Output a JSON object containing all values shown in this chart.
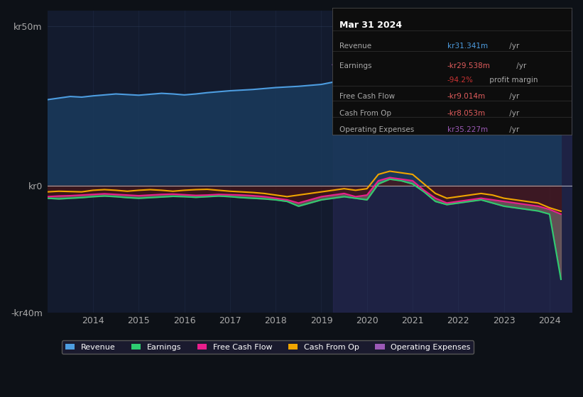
{
  "bg_color": "#0d1117",
  "plot_bg_color": "#131b2e",
  "title": "Mar 31 2024",
  "tooltip": {
    "title": "Mar 31 2024",
    "rows": [
      {
        "label": "Revenue",
        "value": "kr31.341m /yr",
        "value_color": "#4d9de0"
      },
      {
        "label": "Earnings",
        "value": "-kr29.538m /yr",
        "value_color": "#e05c5c"
      },
      {
        "label": "",
        "value": "-94.2% profit margin",
        "value_color": "#cc3333"
      },
      {
        "label": "Free Cash Flow",
        "value": "-kr9.014m /yr",
        "value_color": "#e05c5c"
      },
      {
        "label": "Cash From Op",
        "value": "-kr8.053m /yr",
        "value_color": "#e05c5c"
      },
      {
        "label": "Operating Expenses",
        "value": "kr35.227m /yr",
        "value_color": "#9b59b6"
      }
    ]
  },
  "ylim": [
    -40,
    55
  ],
  "yticks": [
    -40,
    0,
    50
  ],
  "ytick_labels": [
    "-kr40m",
    "kr0",
    "kr50m"
  ],
  "xlim_start": 2013.0,
  "xlim_end": 2024.5,
  "xtick_years": [
    2014,
    2015,
    2016,
    2017,
    2018,
    2019,
    2020,
    2021,
    2022,
    2023,
    2024
  ],
  "highlight_start": 2019.25,
  "highlight_end": 2024.5,
  "legend": [
    {
      "label": "Revenue",
      "color": "#4d9de0"
    },
    {
      "label": "Earnings",
      "color": "#2ecc71"
    },
    {
      "label": "Free Cash Flow",
      "color": "#e91e8c"
    },
    {
      "label": "Cash From Op",
      "color": "#f0a500"
    },
    {
      "label": "Operating Expenses",
      "color": "#9b59b6"
    }
  ],
  "revenue": {
    "x": [
      2013.0,
      2013.25,
      2013.5,
      2013.75,
      2014.0,
      2014.25,
      2014.5,
      2014.75,
      2015.0,
      2015.25,
      2015.5,
      2015.75,
      2016.0,
      2016.25,
      2016.5,
      2016.75,
      2017.0,
      2017.25,
      2017.5,
      2017.75,
      2018.0,
      2018.25,
      2018.5,
      2018.75,
      2019.0,
      2019.25,
      2019.5,
      2019.75,
      2020.0,
      2020.25,
      2020.5,
      2020.75,
      2021.0,
      2021.25,
      2021.5,
      2021.75,
      2022.0,
      2022.25,
      2022.5,
      2022.75,
      2023.0,
      2023.25,
      2023.5,
      2023.75,
      2024.0,
      2024.25
    ],
    "y": [
      27,
      27.5,
      28,
      27.8,
      28.2,
      28.5,
      28.8,
      28.6,
      28.4,
      28.7,
      29.0,
      28.8,
      28.5,
      28.8,
      29.2,
      29.5,
      29.8,
      30.0,
      30.2,
      30.5,
      30.8,
      31.0,
      31.2,
      31.5,
      31.8,
      32.5,
      33.5,
      34.5,
      35.5,
      36.0,
      34.0,
      32.0,
      30.0,
      28.5,
      29.0,
      30.5,
      31.0,
      31.5,
      32.0,
      31.5,
      31.0,
      31.5,
      32.0,
      32.5,
      33.0,
      31.3
    ],
    "color": "#4d9de0",
    "fill_color": "#1a3a5c",
    "linewidth": 1.5
  },
  "earnings": {
    "x": [
      2013.0,
      2013.25,
      2013.5,
      2013.75,
      2014.0,
      2014.25,
      2014.5,
      2014.75,
      2015.0,
      2015.25,
      2015.5,
      2015.75,
      2016.0,
      2016.25,
      2016.5,
      2016.75,
      2017.0,
      2017.25,
      2017.5,
      2017.75,
      2018.0,
      2018.25,
      2018.5,
      2018.75,
      2019.0,
      2019.25,
      2019.5,
      2019.75,
      2020.0,
      2020.25,
      2020.5,
      2020.75,
      2021.0,
      2021.25,
      2021.5,
      2021.75,
      2022.0,
      2022.25,
      2022.5,
      2022.75,
      2023.0,
      2023.25,
      2023.5,
      2023.75,
      2024.0,
      2024.25
    ],
    "y": [
      -4,
      -4.2,
      -4.0,
      -3.8,
      -3.5,
      -3.3,
      -3.5,
      -3.8,
      -4.0,
      -3.8,
      -3.6,
      -3.4,
      -3.5,
      -3.7,
      -3.5,
      -3.3,
      -3.5,
      -3.8,
      -4.0,
      -4.2,
      -4.5,
      -5.0,
      -6.5,
      -5.5,
      -4.5,
      -4.0,
      -3.5,
      -4.0,
      -4.5,
      0.5,
      2.0,
      1.5,
      0.5,
      -2.0,
      -5.0,
      -6.0,
      -5.5,
      -5.0,
      -4.5,
      -5.5,
      -6.5,
      -7.0,
      -7.5,
      -8.0,
      -9.0,
      -29.5
    ],
    "color": "#2ecc71",
    "fill_color": "#1a4030",
    "linewidth": 1.5
  },
  "free_cash_flow": {
    "x": [
      2013.0,
      2013.25,
      2013.5,
      2013.75,
      2014.0,
      2014.25,
      2014.5,
      2014.75,
      2015.0,
      2015.25,
      2015.5,
      2015.75,
      2016.0,
      2016.25,
      2016.5,
      2016.75,
      2017.0,
      2017.25,
      2017.5,
      2017.75,
      2018.0,
      2018.25,
      2018.5,
      2018.75,
      2019.0,
      2019.25,
      2019.5,
      2019.75,
      2020.0,
      2020.25,
      2020.5,
      2020.75,
      2021.0,
      2021.25,
      2021.5,
      2021.75,
      2022.0,
      2022.25,
      2022.5,
      2022.75,
      2023.0,
      2023.25,
      2023.5,
      2023.75,
      2024.0,
      2024.25
    ],
    "y": [
      -3.5,
      -3.3,
      -3.2,
      -3.0,
      -2.8,
      -2.6,
      -2.8,
      -3.0,
      -3.2,
      -3.0,
      -2.8,
      -2.7,
      -2.9,
      -3.1,
      -3.0,
      -2.8,
      -2.9,
      -3.0,
      -3.2,
      -3.5,
      -4.0,
      -4.5,
      -5.5,
      -4.5,
      -3.5,
      -3.0,
      -2.5,
      -3.5,
      -3.0,
      1.5,
      2.5,
      2.0,
      1.5,
      -1.5,
      -4.0,
      -5.5,
      -5.0,
      -4.5,
      -4.0,
      -4.5,
      -5.0,
      -5.5,
      -6.0,
      -6.5,
      -7.5,
      -9.0
    ],
    "color": "#e91e8c",
    "linewidth": 1.5
  },
  "cash_from_op": {
    "x": [
      2013.0,
      2013.25,
      2013.5,
      2013.75,
      2014.0,
      2014.25,
      2014.5,
      2014.75,
      2015.0,
      2015.25,
      2015.5,
      2015.75,
      2016.0,
      2016.25,
      2016.5,
      2016.75,
      2017.0,
      2017.25,
      2017.5,
      2017.75,
      2018.0,
      2018.25,
      2018.5,
      2018.75,
      2019.0,
      2019.25,
      2019.5,
      2019.75,
      2020.0,
      2020.25,
      2020.5,
      2020.75,
      2021.0,
      2021.25,
      2021.5,
      2021.75,
      2022.0,
      2022.25,
      2022.5,
      2022.75,
      2023.0,
      2023.25,
      2023.5,
      2023.75,
      2024.0,
      2024.25
    ],
    "y": [
      -2.0,
      -1.8,
      -1.9,
      -2.0,
      -1.5,
      -1.3,
      -1.5,
      -1.8,
      -1.5,
      -1.3,
      -1.5,
      -1.8,
      -1.5,
      -1.3,
      -1.2,
      -1.5,
      -1.8,
      -2.0,
      -2.2,
      -2.5,
      -3.0,
      -3.5,
      -3.0,
      -2.5,
      -2.0,
      -1.5,
      -1.0,
      -1.5,
      -1.0,
      3.5,
      4.5,
      4.0,
      3.5,
      0.5,
      -2.5,
      -4.0,
      -3.5,
      -3.0,
      -2.5,
      -3.0,
      -4.0,
      -4.5,
      -5.0,
      -5.5,
      -7.0,
      -8.1
    ],
    "color": "#f0a500",
    "linewidth": 1.5
  },
  "op_expenses": {
    "x": [
      2013.0,
      2013.25,
      2013.5,
      2013.75,
      2014.0,
      2014.25,
      2014.5,
      2014.75,
      2015.0,
      2015.25,
      2015.5,
      2015.75,
      2016.0,
      2016.25,
      2016.5,
      2016.75,
      2017.0,
      2017.25,
      2017.5,
      2017.75,
      2018.0,
      2018.25,
      2018.5,
      2018.75,
      2019.0,
      2019.25,
      2019.5,
      2019.75,
      2020.0,
      2020.25,
      2020.5,
      2020.75,
      2021.0,
      2021.25,
      2021.5,
      2021.75,
      2022.0,
      2022.25,
      2022.5,
      2022.75,
      2023.0,
      2023.25,
      2023.5,
      2023.75,
      2024.0,
      2024.25
    ],
    "y": [
      null,
      null,
      null,
      null,
      null,
      null,
      null,
      null,
      null,
      null,
      null,
      null,
      null,
      null,
      null,
      null,
      null,
      null,
      null,
      null,
      null,
      null,
      null,
      null,
      null,
      38.0,
      35.0,
      32.0,
      28.0,
      27.0,
      26.5,
      25.5,
      26.0,
      26.5,
      27.0,
      28.5,
      29.5,
      30.0,
      30.5,
      31.0,
      32.0,
      32.5,
      33.0,
      33.5,
      34.0,
      35.2
    ],
    "color": "#9b59b6",
    "linewidth": 1.5
  }
}
